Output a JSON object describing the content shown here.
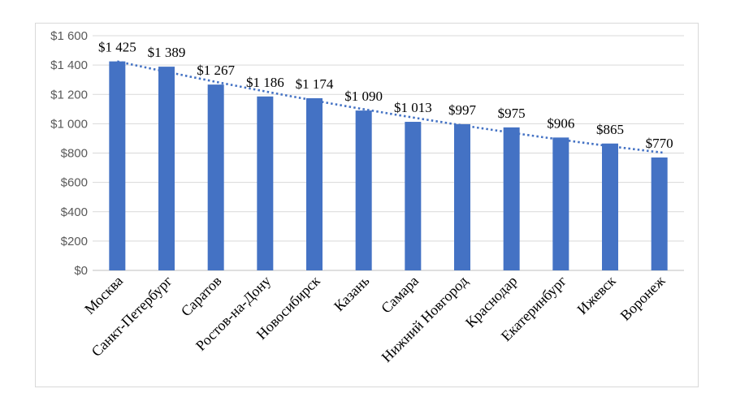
{
  "chart_data": {
    "type": "bar",
    "title": "",
    "categories": [
      "Москва",
      "Санкт-Петербург",
      "Саратов",
      "Ростов-на-Дону",
      "Новосибирск",
      "Казань",
      "Самара",
      "Нижний Новгород",
      "Краснодар",
      "Екатеринбург",
      "Ижевск",
      "Воронеж"
    ],
    "values": [
      1425,
      1389,
      1267,
      1186,
      1174,
      1090,
      1013,
      997,
      975,
      906,
      865,
      770
    ],
    "data_labels": [
      "$1 425",
      "$1 389",
      "$1 267",
      "$1 186",
      "$1 174",
      "$1 090",
      "$1 013",
      "$997",
      "$975",
      "$906",
      "$865",
      "$770"
    ],
    "xlabel": "",
    "ylabel": "",
    "y_axis": {
      "min": 0,
      "max": 1600,
      "step": 200,
      "tick_values": [
        1600,
        1400,
        1200,
        1000,
        800,
        600,
        400,
        200,
        0
      ],
      "tick_labels": [
        "$1 600",
        "$1 400",
        "$1 200",
        "$1 000",
        "$800",
        "$600",
        "$400",
        "$200",
        "$0"
      ]
    },
    "grid": true,
    "legend": "none",
    "trendline": {
      "type": "polynomial",
      "order": 2,
      "style": "dotted"
    },
    "colors": {
      "bar": "#4472C4",
      "trendline": "#4472C4",
      "gridline": "#D9D9D9",
      "axis_line": "#BFBFBF",
      "tick_text": "#595959",
      "data_label_text": "#000000",
      "category_text": "#000000",
      "frame_border": "#D9D9D9",
      "background": "#FFFFFF"
    }
  }
}
